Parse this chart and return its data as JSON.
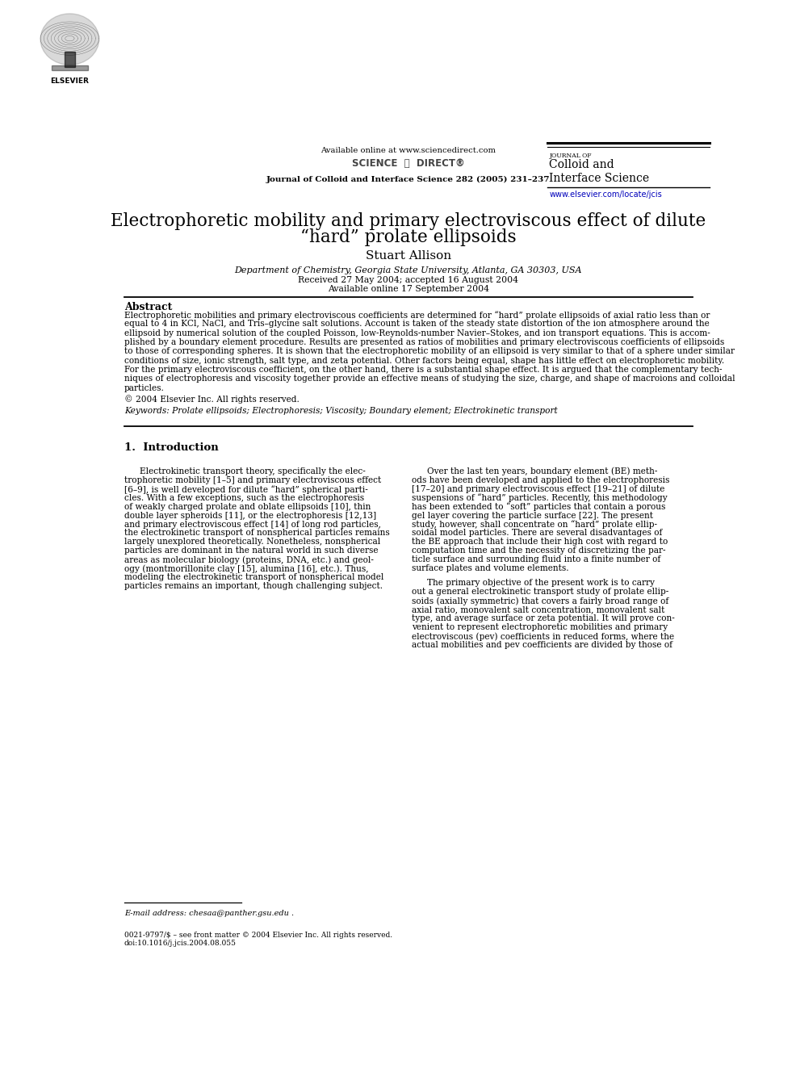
{
  "bg_color": "#ffffff",
  "page_width": 9.87,
  "page_height": 13.23,
  "header": {
    "available_text": "Available online at www.sciencedirect.com",
    "journal_name_top": "JOURNAL OF",
    "journal_name_line1": "Colloid and",
    "journal_name_line2": "Interface Science",
    "journal_info": "Journal of Colloid and Interface Science 282 (2005) 231–237",
    "website": "www.elsevier.com/locate/jcis"
  },
  "title_line1": "Electrophoretic mobility and primary electroviscous effect of dilute",
  "title_line2": "“hard” prolate ellipsoids",
  "author": "Stuart Allison",
  "affiliation": "Department of Chemistry, Georgia State University, Atlanta, GA 30303, USA",
  "received": "Received 27 May 2004; accepted 16 August 2004",
  "available": "Available online 17 September 2004",
  "abstract_title": "Abstract",
  "abstract_text": "Electrophoretic mobilities and primary electroviscous coefficients are determined for “hard” prolate ellipsoids of axial ratio less than or\nequal to 4 in KCl, NaCl, and Tris–glycine salt solutions. Account is taken of the steady state distortion of the ion atmosphere around the\nellipsoid by numerical solution of the coupled Poisson, low-Reynolds-number Navier–Stokes, and ion transport equations. This is accom-\nplished by a boundary element procedure. Results are presented as ratios of mobilities and primary electroviscous coefficients of ellipsoids\nto those of corresponding spheres. It is shown that the electrophoretic mobility of an ellipsoid is very similar to that of a sphere under similar\nconditions of size, ionic strength, salt type, and zeta potential. Other factors being equal, shape has little effect on electrophoretic mobility.\nFor the primary electroviscous coefficient, on the other hand, there is a substantial shape effect. It is argued that the complementary tech-\nniques of electrophoresis and viscosity together provide an effective means of studying the size, charge, and shape of macroions and colloidal\nparticles.",
  "copyright": "© 2004 Elsevier Inc. All rights reserved.",
  "keywords": "Keywords: Prolate ellipsoids; Electrophoresis; Viscosity; Boundary element; Electrokinetic transport",
  "section1_title": "1.  Introduction",
  "col1_intro": "Electrokinetic transport theory, specifically the elec-\ntrophoretic mobility [1–5] and primary electroviscous effect\n[6–9], is well developed for dilute “hard” spherical parti-\ncles. With a few exceptions, such as the electrophoresis\nof weakly charged prolate and oblate ellipsoids [10], thin\ndouble layer spheroids [11], or the electrophoresis [12,13]\nand primary electroviscous effect [14] of long rod particles,\nthe electrokinetic transport of nonspherical particles remains\nlargely unexplored theoretically. Nonetheless, nonspherical\nparticles are dominant in the natural world in such diverse\nareas as molecular biology (proteins, DNA, etc.) and geol-\nogy (montmorillonite clay [15], alumina [16], etc.). Thus,\nmodeling the electrokinetic transport of nonspherical model\nparticles remains an important, though challenging subject.",
  "col2_intro": "Over the last ten years, boundary element (BE) meth-\nods have been developed and applied to the electrophoresis\n[17–20] and primary electroviscous effect [19–21] of dilute\nsuspensions of “hard” particles. Recently, this methodology\nhas been extended to “soft” particles that contain a porous\ngel layer covering the particle surface [22]. The present\nstudy, however, shall concentrate on “hard” prolate ellip-\nsoidal model particles. There are several disadvantages of\nthe BE approach that include their high cost with regard to\ncomputation time and the necessity of discretizing the par-\nticle surface and surrounding fluid into a finite number of\nsurface plates and volume elements.",
  "col2_para2": "The primary objective of the present work is to carry\nout a general electrokinetic transport study of prolate ellip-\nsoids (axially symmetric) that covers a fairly broad range of\naxial ratio, monovalent salt concentration, monovalent salt\ntype, and average surface or zeta potential. It will prove con-\nvenient to represent electrophoretic mobilities and primary\nelectroviscous (pev) coefficients in reduced forms, where the\nactual mobilities and pev coefficients are divided by those of",
  "footnote_email": "E-mail address: chesaa@panther.gsu.edu .",
  "footnote_bottom_1": "0021-9797/$ – see front matter © 2004 Elsevier Inc. All rights reserved.",
  "footnote_bottom_2": "doi:10.1016/j.jcis.2004.08.055"
}
